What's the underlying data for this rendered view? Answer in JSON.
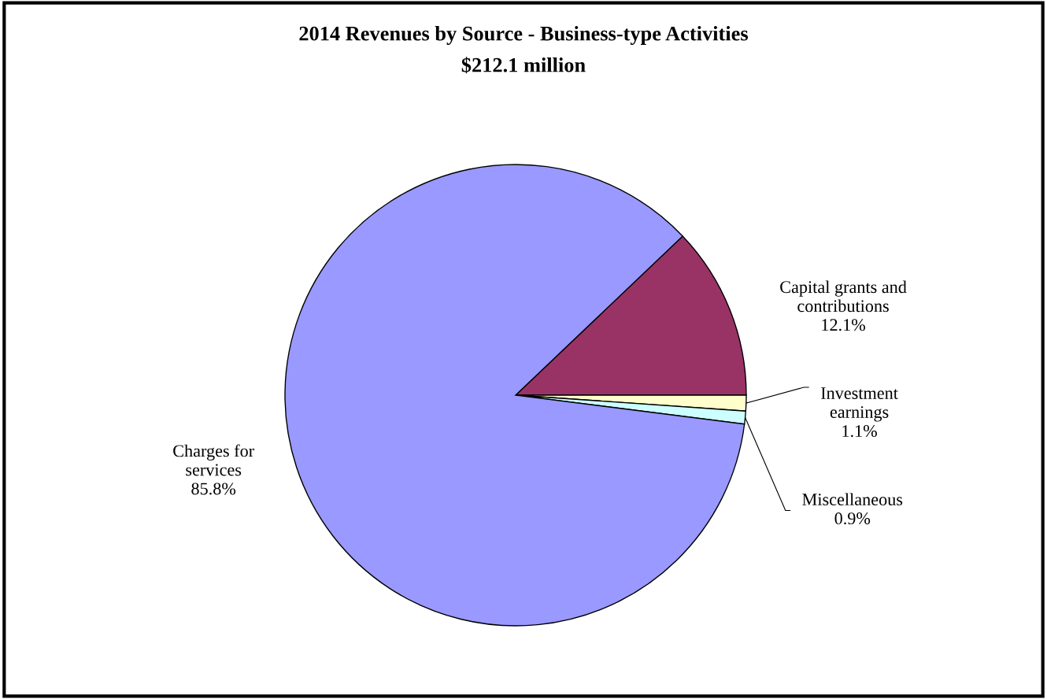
{
  "chart_data": {
    "type": "pie",
    "title": "2014 Revenues by Source - Business-type Activities",
    "subtitle": "$212.1 million",
    "categories": [
      "Capital grants and\ncontributions",
      "Investment\nearnings",
      "Miscellaneous",
      "Charges for\nservices"
    ],
    "values": [
      12.1,
      1.1,
      0.9,
      85.8
    ],
    "colors": [
      "#993366",
      "#ffffcc",
      "#ccffff",
      "#9999ff"
    ],
    "value_labels": [
      "12.1%",
      "1.1%",
      "0.9%",
      "85.8%"
    ]
  }
}
